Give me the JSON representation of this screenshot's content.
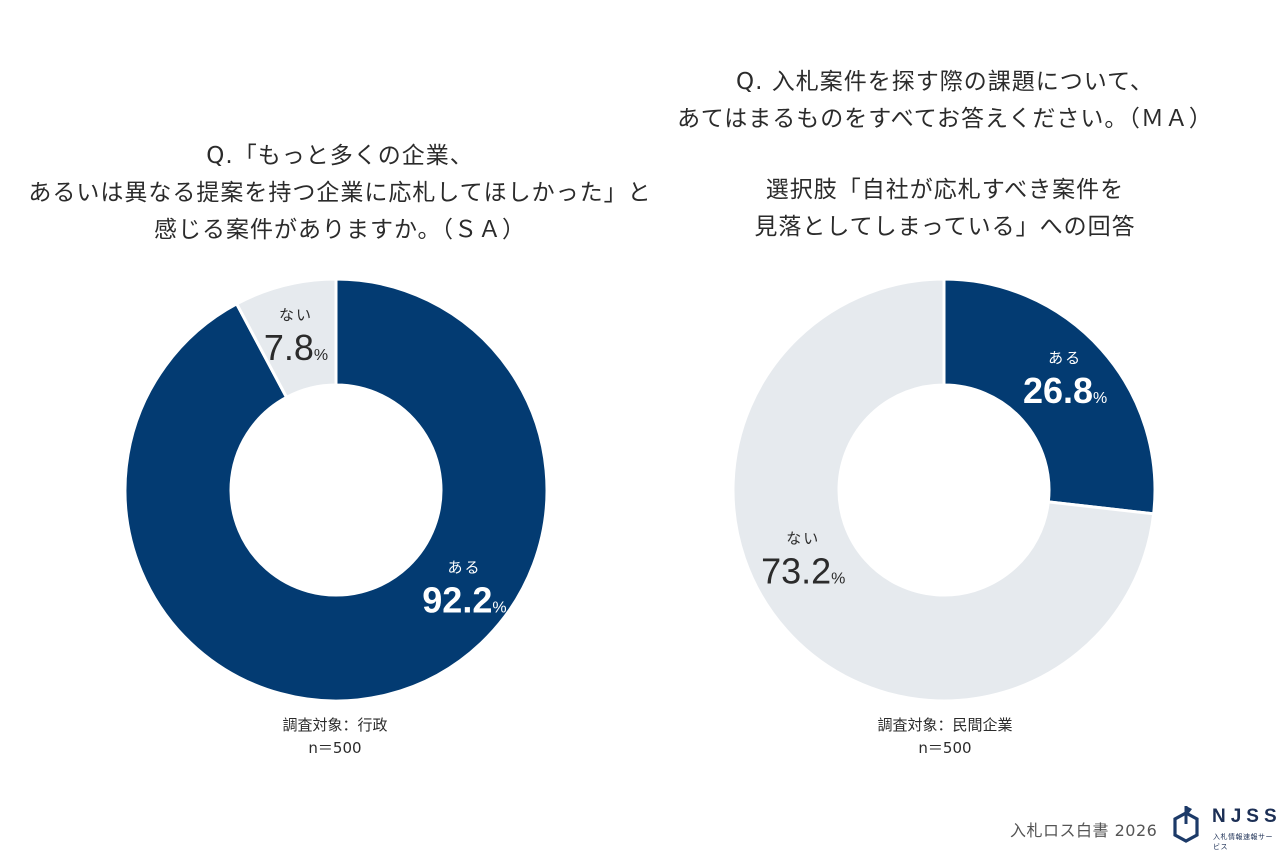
{
  "colors": {
    "primary": "#033b72",
    "secondary": "#e6eaee",
    "text_dark": "#2b2b2b",
    "text_light": "#ffffff"
  },
  "left": {
    "title_lines": [
      "Q.「もっと多くの企業、",
      "あるいは異なる提案を持つ企業に応札してほしかった」と",
      "感じる案件がありますか。（ＳＡ）"
    ],
    "note_lines": [
      "調査対象：行政",
      "n＝500"
    ]
  },
  "right": {
    "question_lines": [
      "Q. 入札案件を探す際の課題について、",
      "あてはまるものをすべてお答えください。（ＭＡ）"
    ],
    "option_lines": [
      "選択肢「自社が応札すべき案件を",
      "見落としてしまっている」への回答"
    ],
    "note_lines": [
      "調査対象：民間企業",
      "n＝500"
    ]
  },
  "footer": {
    "publication": "入札ロス白書 2026",
    "logo_name": "NJSS",
    "logo_sub": "入札情報速報サービス"
  },
  "chart_data": [
    {
      "type": "pie",
      "variant": "donut",
      "title": "Q.「もっと多くの企業、あるいは異なる提案を持つ企業に応札してほしかった」と感じる案件がありますか。（ＳＡ）",
      "start": "top",
      "direction": "clockwise",
      "slices": [
        {
          "label": "ある",
          "value": 92.2,
          "display": "92.2",
          "unit": "%",
          "color": "#033b72",
          "text_color": "#ffffff"
        },
        {
          "label": "ない",
          "value": 7.8,
          "display": "7.8",
          "unit": "%",
          "color": "#e6eaee",
          "text_color": "#2b2b2b"
        }
      ],
      "sample": "調査対象：行政 n＝500"
    },
    {
      "type": "pie",
      "variant": "donut",
      "title": "Q. 入札案件を探す際の課題について、あてはまるものをすべてお答えください。（ＭＡ） 選択肢「自社が応札すべき案件を見落としてしまっている」への回答",
      "start": "top",
      "direction": "clockwise",
      "slices": [
        {
          "label": "ある",
          "value": 26.8,
          "display": "26.8",
          "unit": "%",
          "color": "#033b72",
          "text_color": "#ffffff"
        },
        {
          "label": "ない",
          "value": 73.2,
          "display": "73.2",
          "unit": "%",
          "color": "#e6eaee",
          "text_color": "#2b2b2b"
        }
      ],
      "sample": "調査対象：民間企業 n＝500"
    }
  ]
}
